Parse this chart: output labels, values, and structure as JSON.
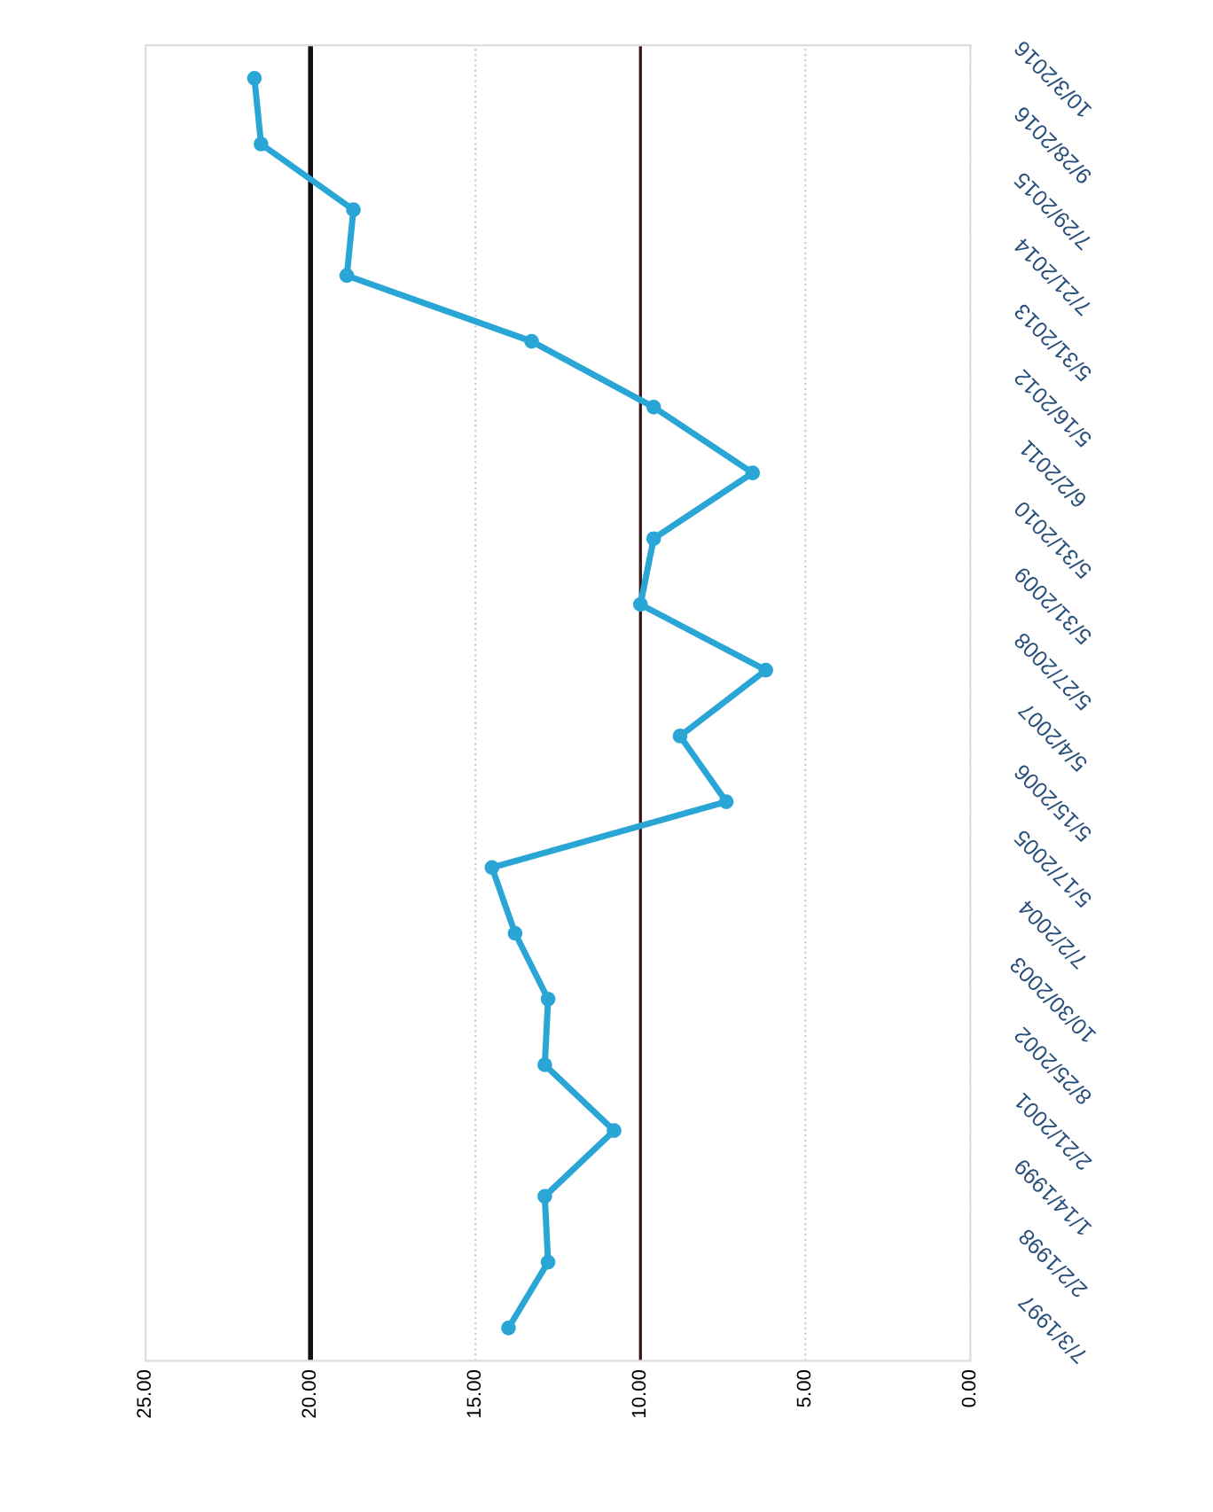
{
  "chart_data": {
    "type": "line",
    "orientation": "horizontal",
    "categories": [
      "10/3/2016",
      "9/28/2016",
      "7/29/2015",
      "7/21/2014",
      "5/31/2013",
      "5/16/2012",
      "6/2/2011",
      "5/31/2010",
      "5/31/2009",
      "5/27/2008",
      "5/4/2007",
      "5/15/2006",
      "5/17/2005",
      "7/2/2004",
      "10/30/2003",
      "8/25/2002",
      "2/21/2001",
      "1/14/1999",
      "2/2/1998",
      "7/3/1997"
    ],
    "series": [
      {
        "color": "#2aa6d6",
        "values": [
          21.7,
          21.5,
          18.7,
          18.9,
          13.3,
          9.6,
          6.6,
          9.6,
          10.0,
          6.2,
          8.8,
          7.4,
          14.5,
          13.8,
          12.8,
          12.9,
          10.8,
          12.9,
          12.8,
          14.0
        ]
      }
    ],
    "xlim": [
      25,
      0
    ],
    "xticks": [
      {
        "value": 25,
        "label": "25.00"
      },
      {
        "value": 20,
        "label": "20.00"
      },
      {
        "value": 15,
        "label": "15.00"
      },
      {
        "value": 10,
        "label": "10.00"
      },
      {
        "value": 5,
        "label": "5.00"
      },
      {
        "value": 0,
        "label": "0.00"
      }
    ],
    "ref_lines": [
      {
        "axis": "x",
        "value": 20,
        "color": "#111111"
      },
      {
        "axis": "x",
        "value": 10,
        "color": "#3a1a1a"
      }
    ],
    "grid": "x",
    "marker": "circle",
    "line_style": "solid",
    "legend": false
  }
}
